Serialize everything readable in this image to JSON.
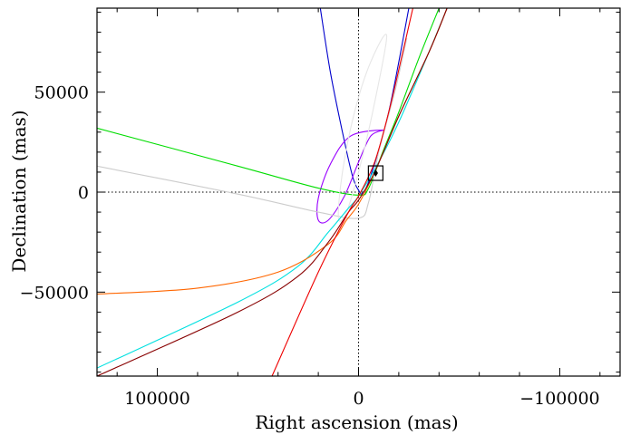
{
  "chart_data": {
    "type": "line",
    "xlabel": "Right ascension (mas)",
    "ylabel": "Declination (mas)",
    "xlim": [
      130000,
      -130000
    ],
    "ylim": [
      -92000,
      92000
    ],
    "x_reversed": true,
    "grid": false,
    "zero_lines": true,
    "x_ticks": [
      {
        "value": 100000,
        "label": "100000"
      },
      {
        "value": 0,
        "label": "0"
      },
      {
        "value": -100000,
        "label": "−100000"
      }
    ],
    "y_ticks": [
      {
        "value": 50000,
        "label": "50000"
      },
      {
        "value": 0,
        "label": "0"
      },
      {
        "value": -50000,
        "label": "−50000"
      }
    ],
    "series": [
      {
        "color": "#0000cc",
        "points": [
          [
            19000,
            92000
          ],
          [
            14000,
            60000
          ],
          [
            8000,
            30000
          ],
          [
            3000,
            8000
          ],
          [
            0,
            1000
          ],
          [
            -2000,
            -500
          ],
          [
            -6000,
            8000
          ],
          [
            -15000,
            40000
          ],
          [
            -25000,
            92000
          ]
        ]
      },
      {
        "color": "#9900ff",
        "shape": "ellipse",
        "center": [
          1800,
          9000
        ],
        "points": [
          [
            -12000,
            31000
          ],
          [
            -6000,
            28000
          ],
          [
            0,
            15000
          ],
          [
            7000,
            -2000
          ],
          [
            15000,
            -14000
          ],
          [
            20000,
            -14000
          ],
          [
            20000,
            -3000
          ],
          [
            14000,
            14000
          ],
          [
            4000,
            28000
          ],
          [
            -12000,
            31000
          ]
        ]
      },
      {
        "color": "#00dd00",
        "points": [
          [
            130000,
            32000
          ],
          [
            60000,
            13000
          ],
          [
            20000,
            2000
          ],
          [
            0,
            -1500
          ],
          [
            -5000,
            2000
          ],
          [
            -12000,
            20000
          ],
          [
            -20000,
            40000
          ],
          [
            -30000,
            67000
          ],
          [
            -40000,
            92000
          ]
        ]
      },
      {
        "color": "#cccccc",
        "points": [
          [
            130000,
            13000
          ],
          [
            60000,
            -1000
          ],
          [
            20000,
            -10000
          ],
          [
            0,
            -13000
          ],
          [
            -5000,
            -5000
          ],
          [
            -10000,
            20000
          ],
          [
            -18000,
            50000
          ],
          [
            -24000,
            77000
          ]
        ]
      },
      {
        "color": "#e6e6e6",
        "shape": "ellipse",
        "center": [
          -7000,
          33000
        ],
        "points": [
          [
            -14000,
            78000
          ],
          [
            -6000,
            65000
          ],
          [
            2000,
            40000
          ],
          [
            8000,
            10000
          ],
          [
            10000,
            -13000
          ],
          [
            6000,
            -10000
          ],
          [
            0,
            10000
          ],
          [
            -7000,
            40000
          ],
          [
            -14000,
            78000
          ]
        ]
      },
      {
        "color": "#00e0e0",
        "points": [
          [
            130000,
            -88000
          ],
          [
            60000,
            -55000
          ],
          [
            30000,
            -37000
          ],
          [
            15000,
            -20000
          ],
          [
            5000,
            -8000
          ],
          [
            0,
            -2000
          ],
          [
            -10000,
            15000
          ],
          [
            -20000,
            35000
          ],
          [
            -35000,
            70000
          ],
          [
            -44000,
            92000
          ]
        ]
      },
      {
        "color": "#ff6600",
        "points": [
          [
            130000,
            -51000
          ],
          [
            80000,
            -48000
          ],
          [
            40000,
            -40000
          ],
          [
            15000,
            -26000
          ],
          [
            6000,
            -14000
          ],
          [
            0,
            -6000
          ],
          [
            -8000,
            10000
          ],
          [
            -20000,
            38000
          ],
          [
            -35000,
            70000
          ],
          [
            -44000,
            92000
          ]
        ]
      },
      {
        "color": "#880000",
        "points": [
          [
            130000,
            -92000
          ],
          [
            60000,
            -60000
          ],
          [
            30000,
            -42000
          ],
          [
            15000,
            -25000
          ],
          [
            5000,
            -10000
          ],
          [
            0,
            -4000
          ],
          [
            -8000,
            10000
          ],
          [
            -20000,
            38000
          ],
          [
            -35000,
            70000
          ],
          [
            -44000,
            92000
          ]
        ]
      },
      {
        "color": "#ee0000",
        "points": [
          [
            43000,
            -92000
          ],
          [
            20000,
            -40000
          ],
          [
            5000,
            -10000
          ],
          [
            0,
            -2000
          ],
          [
            -8000,
            15000
          ],
          [
            -15000,
            40000
          ],
          [
            -22000,
            70000
          ],
          [
            -27000,
            92000
          ]
        ]
      }
    ],
    "marker": {
      "center": [
        -8500,
        9500
      ],
      "symbol": "filled-diamond",
      "box": "open-square"
    }
  }
}
